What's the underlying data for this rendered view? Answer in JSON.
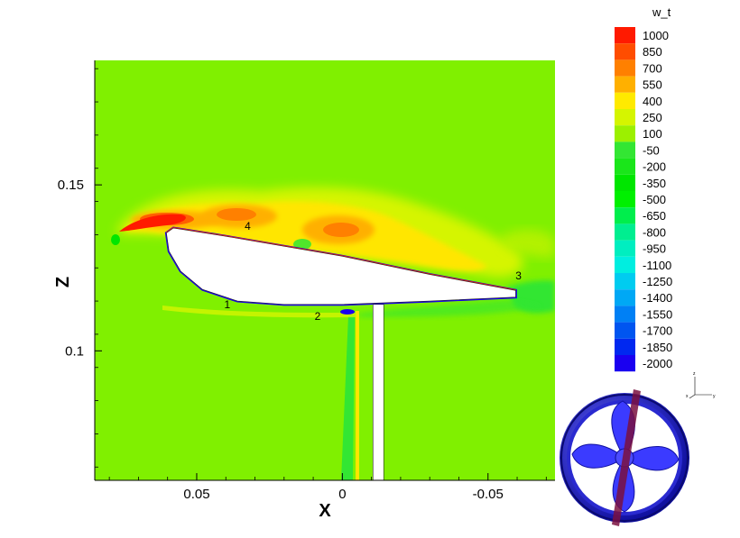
{
  "chart_data": {
    "type": "contour",
    "xlabel": "X",
    "ylabel": "Z",
    "xlim": [
      0.085,
      -0.073
    ],
    "ylim": [
      0.061,
      0.1875
    ],
    "x_reversed": true,
    "x_ticks": [
      0.05,
      0,
      -0.05
    ],
    "x_tick_labels": [
      "0.05",
      "0",
      "-0.05"
    ],
    "y_ticks": [
      0.15,
      0.1
    ],
    "y_tick_labels": [
      "0.15",
      "0.1"
    ],
    "background_level": "100",
    "legend": {
      "title": "w_t",
      "placement": "right",
      "levels": [
        "1000",
        "850",
        "700",
        "550",
        "400",
        "250",
        "100",
        "-50",
        "-200",
        "-350",
        "-500",
        "-650",
        "-800",
        "-950",
        "-1100",
        "-1250",
        "-1400",
        "-1550",
        "-1700",
        "-1850",
        "-2000"
      ],
      "colors": [
        "#ff1a00",
        "#ff4d00",
        "#ff8000",
        "#ffb000",
        "#ffea00",
        "#d5f500",
        "#9cf000",
        "#33e633",
        "#1ae61a",
        "#00e600",
        "#00f000",
        "#00ee4c",
        "#00ee90",
        "#00eec0",
        "#00eee0",
        "#00ccf0",
        "#00a8f5",
        "#0080f5",
        "#0055f0",
        "#0028f0",
        "#1a00f0"
      ]
    },
    "annotations": [
      {
        "label": "1",
        "x": 0.0395,
        "z": 0.1128
      },
      {
        "label": "2",
        "x": 0.0085,
        "z": 0.1093
      },
      {
        "label": "3",
        "x": -0.0605,
        "z": 0.1215
      },
      {
        "label": "4",
        "x": 0.0325,
        "z": 0.1365
      }
    ],
    "foil": {
      "leading_edge": {
        "x": 0.0604,
        "z": 0.1355
      },
      "trailing_edge": {
        "x": -0.0595,
        "z": 0.1175
      },
      "lower_surface_points": [
        {
          "x": 0.0604,
          "z": 0.1355
        },
        {
          "x": 0.0595,
          "z": 0.13
        },
        {
          "x": 0.0555,
          "z": 0.124
        },
        {
          "x": 0.048,
          "z": 0.1185
        },
        {
          "x": 0.036,
          "z": 0.115
        },
        {
          "x": 0.02,
          "z": 0.114
        },
        {
          "x": 0.0,
          "z": 0.114
        },
        {
          "x": -0.03,
          "z": 0.115
        },
        {
          "x": -0.0595,
          "z": 0.1162
        }
      ],
      "upper_surface_points": [
        {
          "x": 0.0604,
          "z": 0.1355
        },
        {
          "x": 0.058,
          "z": 0.137
        },
        {
          "x": 0.04,
          "z": 0.1345
        },
        {
          "x": 0.0,
          "z": 0.1285
        },
        {
          "x": -0.03,
          "z": 0.123
        },
        {
          "x": -0.0595,
          "z": 0.1182
        }
      ]
    },
    "strut": {
      "x_left": -0.0105,
      "x_right": -0.0142,
      "z_top": 0.114,
      "z_bottom": 0.061
    }
  },
  "inset": {
    "triad_labels": [
      "z",
      "x",
      "y"
    ]
  }
}
